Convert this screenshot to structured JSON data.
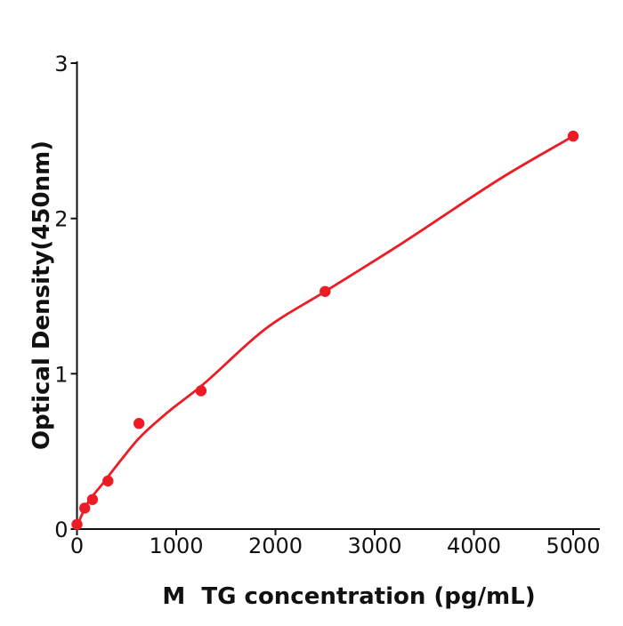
{
  "chart_data": {
    "type": "scatter",
    "title": "",
    "xlabel": "M  TG concentration (pg/mL)",
    "ylabel": "Optical Density(450nm)",
    "x_ticks": [
      0,
      1000,
      2000,
      3000,
      4000,
      5000
    ],
    "x_tick_labels": [
      "0",
      "1000",
      "2000",
      "3000",
      "4000",
      "5000"
    ],
    "y_ticks": [
      0,
      1,
      2,
      3
    ],
    "y_tick_labels": [
      "0",
      "1",
      "2",
      "3"
    ],
    "xlim": [
      0,
      5270
    ],
    "ylim": [
      0,
      3.01
    ],
    "grid": false,
    "legend": null,
    "colors": {
      "curve": "#ed1c24",
      "point": "#ed1c24",
      "axis": "#111111",
      "text": "#111111",
      "background": "#ffffff"
    },
    "series": [
      {
        "name": "standard-points",
        "type": "scatter",
        "color": "#ed1c24",
        "points": [
          [
            0,
            0.03
          ],
          [
            78.1,
            0.135
          ],
          [
            156.3,
            0.19
          ],
          [
            312.5,
            0.31
          ],
          [
            625,
            0.68
          ],
          [
            1250,
            0.89
          ],
          [
            2500,
            1.53
          ],
          [
            5000,
            2.53
          ]
        ]
      },
      {
        "name": "fit-curve",
        "type": "line",
        "color": "#ed1c24",
        "points": [
          [
            0,
            0.02
          ],
          [
            100,
            0.16
          ],
          [
            250,
            0.285
          ],
          [
            450,
            0.45
          ],
          [
            625,
            0.585
          ],
          [
            900,
            0.745
          ],
          [
            1250,
            0.92
          ],
          [
            1900,
            1.29
          ],
          [
            2500,
            1.53
          ],
          [
            3250,
            1.83
          ],
          [
            4300,
            2.27
          ],
          [
            5000,
            2.53
          ]
        ]
      }
    ]
  }
}
